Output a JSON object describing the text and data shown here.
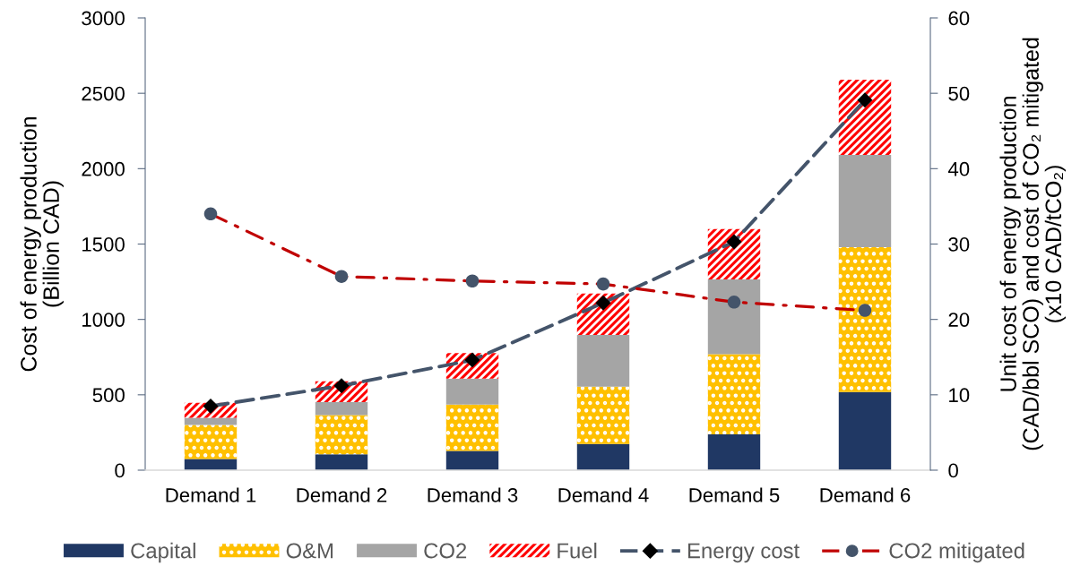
{
  "chart_data": {
    "type": "bar",
    "stacked": true,
    "categories": [
      "Demand 1",
      "Demand 2",
      "Demand 3",
      "Demand 4",
      "Demand 5",
      "Demand 6"
    ],
    "ylabel": "Cost of energy production\n(Billion CAD)",
    "y2label": "Unit cost of energy production\n(CAD/bbl SCO) and cost of CO₂ mitigated\n(x10 CAD/tCO₂)",
    "ylim": [
      0,
      3000
    ],
    "yticks": [
      0,
      500,
      1000,
      1500,
      2000,
      2500,
      3000
    ],
    "y2lim": [
      0,
      60
    ],
    "y2ticks": [
      0,
      10,
      20,
      30,
      40,
      50,
      60
    ],
    "grid": false,
    "legend": "bottom",
    "series": [
      {
        "name": "Capital",
        "color": "#203864",
        "values": [
          75,
          105,
          127,
          174,
          238,
          519
        ]
      },
      {
        "name": "O&M",
        "color": "#ffc000",
        "values": [
          225,
          261,
          308,
          380,
          532,
          960
        ]
      },
      {
        "name": "CO2",
        "color": "#a5a5a5",
        "values": [
          47,
          85,
          173,
          343,
          495,
          612
        ]
      },
      {
        "name": "Fuel",
        "color": "#ff0000",
        "values": [
          100,
          139,
          168,
          275,
          335,
          499
        ]
      },
      {
        "name": "Energy cost",
        "type": "line",
        "axis": "y2",
        "color": "#44546a",
        "colors": [
          "#000000",
          "#000000",
          "#000000",
          "#000000",
          "#000000",
          "#000000"
        ],
        "marker": "diamond",
        "line_style": "dashed",
        "values": [
          8.5,
          11.2,
          14.6,
          22.2,
          30.3,
          49.1
        ]
      },
      {
        "name": "CO2 mitigated",
        "type": "line",
        "axis": "y2",
        "color": "#c00000",
        "colors": [
          "#44546a",
          "#44546a",
          "#44546a",
          "#44546a",
          "#44546a",
          "#44546a"
        ],
        "marker": "circle",
        "line_style": "dashdot",
        "values": [
          34.0,
          25.7,
          25.1,
          24.7,
          22.3,
          21.2
        ]
      }
    ]
  }
}
